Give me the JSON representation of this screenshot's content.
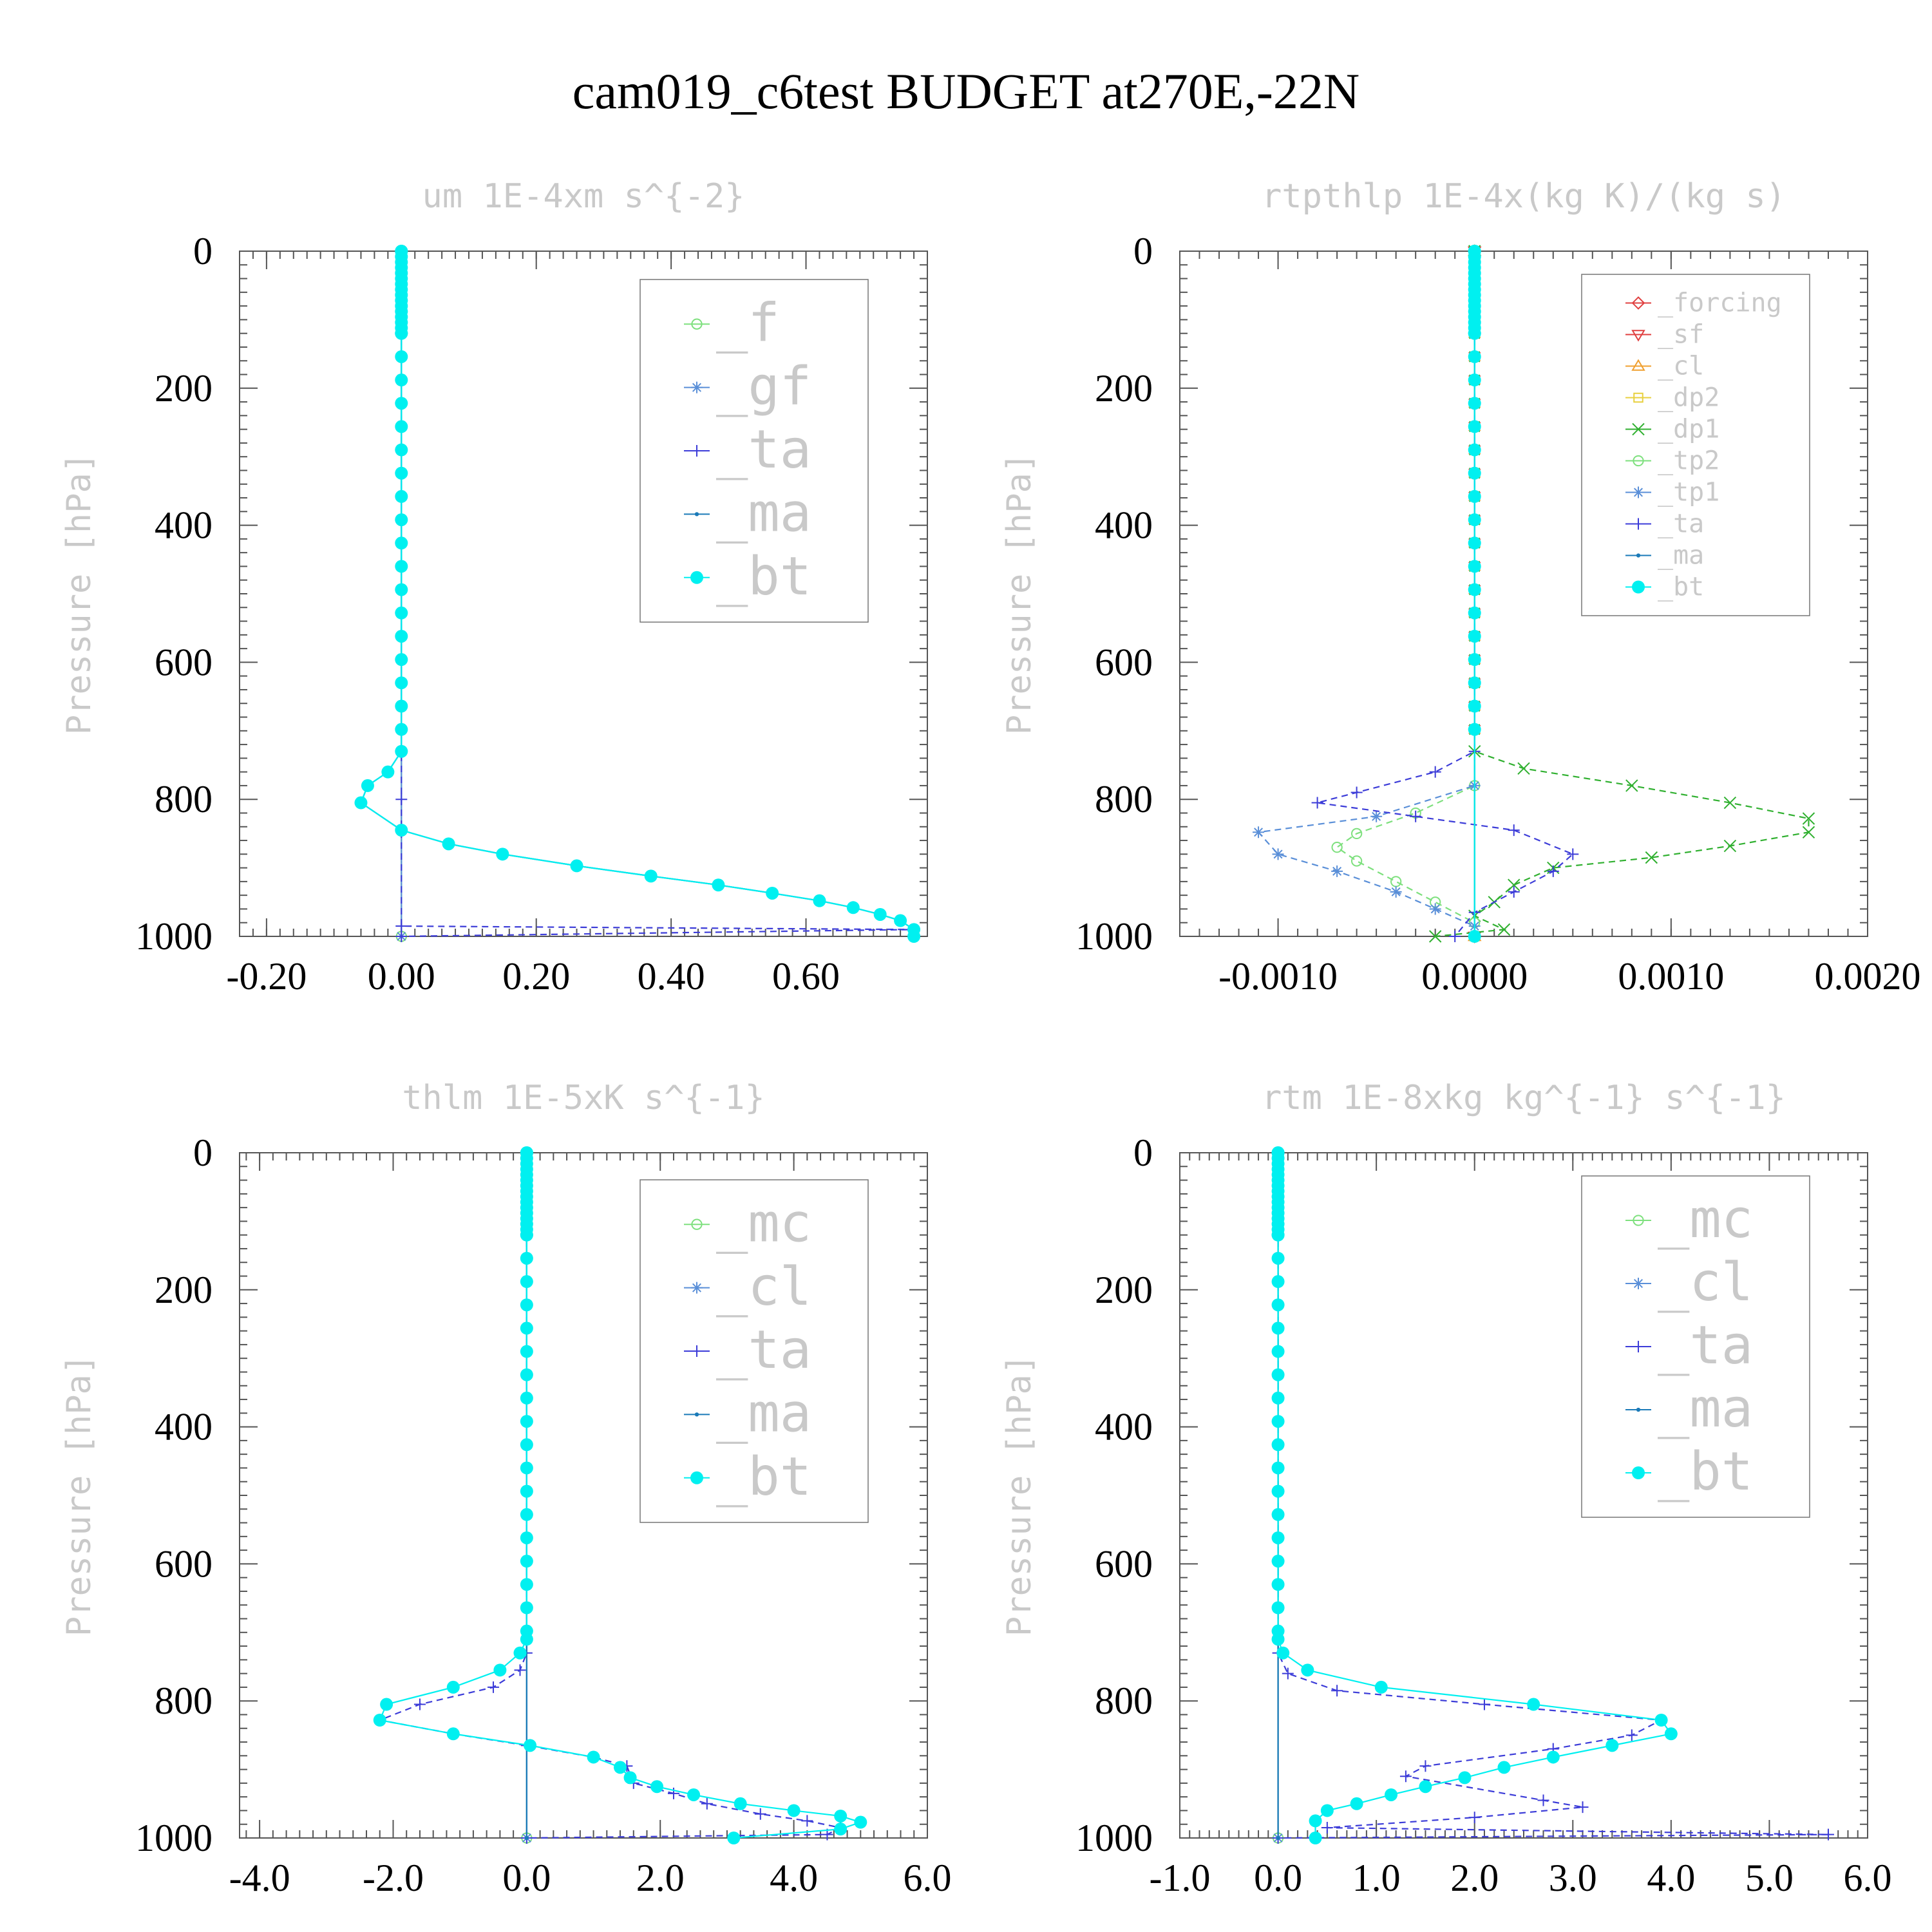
{
  "title": "cam019_c6test  BUDGET at270E,-22N",
  "chart_data": [
    {
      "type": "line",
      "title": "um   1E-4xm s^{-2}",
      "ylabel": "Pressure [hPa]",
      "xlim": [
        -0.24,
        0.78
      ],
      "ylim": [
        1000,
        0
      ],
      "xticks": [
        -0.2,
        0.0,
        0.2,
        0.4,
        0.6
      ],
      "xtick_labels": [
        "-0.20",
        "0.00",
        "0.20",
        "0.40",
        "0.60"
      ],
      "yticks": [
        0,
        200,
        400,
        600,
        800,
        1000
      ],
      "ytick_labels": [
        "0",
        "200",
        "400",
        "600",
        "800",
        "1000"
      ],
      "legend": "top-right",
      "series": [
        {
          "name": "_f",
          "color": "#7ee07e",
          "marker": "circle-open",
          "x": [
            0,
            0
          ],
          "y": [
            0,
            1000
          ]
        },
        {
          "name": "_gf",
          "color": "#5a8fd8",
          "marker": "star",
          "x": [
            0,
            0
          ],
          "y": [
            0,
            1000
          ]
        },
        {
          "name": "_ta",
          "color": "#3c3cd8",
          "marker": "plus",
          "dash": true,
          "x": [
            0.0,
            0.0,
            0.0,
            0.76,
            0.0
          ],
          "y": [
            0,
            800,
            985,
            990,
            1000
          ]
        },
        {
          "name": "_ma",
          "color": "#1a7ab8",
          "marker": "dot",
          "x": [
            0,
            0,
            -0.02,
            -0.05,
            -0.06,
            0.0,
            0.07,
            0.15,
            0.26,
            0.37,
            0.47,
            0.55,
            0.62,
            0.67,
            0.71,
            0.74,
            0.76
          ],
          "y": [
            0,
            730,
            760,
            780,
            805,
            845,
            865,
            880,
            897,
            912,
            925,
            937,
            948,
            958,
            968,
            977,
            990
          ]
        },
        {
          "name": "_bt",
          "color": "#00f0f0",
          "marker": "dot-filled",
          "x": [
            0,
            0,
            -0.02,
            -0.05,
            -0.06,
            0.0,
            0.07,
            0.15,
            0.26,
            0.37,
            0.47,
            0.55,
            0.62,
            0.67,
            0.71,
            0.74,
            0.76,
            0.76
          ],
          "y": [
            0,
            730,
            760,
            780,
            805,
            845,
            865,
            880,
            897,
            912,
            925,
            937,
            948,
            958,
            968,
            977,
            990,
            1000
          ]
        }
      ]
    },
    {
      "type": "line",
      "title": "rtpthlp   1E-4x(kg K)/(kg s)",
      "ylabel": "Pressure [hPa]",
      "xlim": [
        -0.0015,
        0.002
      ],
      "ylim": [
        1000,
        0
      ],
      "xticks": [
        -0.001,
        0.0,
        0.001,
        0.002
      ],
      "xtick_labels": [
        "-0.0010",
        "0.0000",
        "0.0010",
        "0.0020"
      ],
      "yticks": [
        0,
        200,
        400,
        600,
        800,
        1000
      ],
      "ytick_labels": [
        "0",
        "200",
        "400",
        "600",
        "800",
        "1000"
      ],
      "legend": "top-right",
      "series": [
        {
          "name": "_forcing",
          "color": "#e04040",
          "marker": "diamond",
          "x": [
            0,
            0
          ],
          "y": [
            0,
            1000
          ]
        },
        {
          "name": "_sf",
          "color": "#e04040",
          "marker": "triangle-down",
          "x": [
            0,
            0
          ],
          "y": [
            0,
            1000
          ]
        },
        {
          "name": "_cl",
          "color": "#f0a030",
          "marker": "triangle-up",
          "x": [
            0,
            0
          ],
          "y": [
            0,
            1000
          ]
        },
        {
          "name": "_dp2",
          "color": "#e8d040",
          "marker": "square",
          "x": [
            0,
            0
          ],
          "y": [
            0,
            1000
          ]
        },
        {
          "name": "_dp1",
          "color": "#30b030",
          "marker": "x",
          "dash": true,
          "x": [
            0,
            0,
            0.00025,
            0.0008,
            0.0013,
            0.0017,
            0.0017,
            0.0013,
            0.0009,
            0.0004,
            0.0002,
            0.0001,
            0.0,
            0.00015,
            -0.0002
          ],
          "y": [
            0,
            730,
            755,
            780,
            805,
            828,
            848,
            868,
            885,
            900,
            925,
            950,
            970,
            990,
            1000
          ]
        },
        {
          "name": "_tp2",
          "color": "#7ee07e",
          "marker": "circle-open",
          "dash": true,
          "x": [
            0,
            0,
            -0.0003,
            -0.0006,
            -0.0007,
            -0.0006,
            -0.0004,
            -0.0002,
            0.0
          ],
          "y": [
            0,
            780,
            820,
            850,
            870,
            890,
            920,
            950,
            980
          ]
        },
        {
          "name": "_tp1",
          "color": "#5a8fd8",
          "marker": "star",
          "dash": true,
          "x": [
            0,
            0,
            -0.0005,
            -0.0011,
            -0.001,
            -0.0007,
            -0.0004,
            -0.0002,
            0.0
          ],
          "y": [
            0,
            780,
            825,
            848,
            880,
            905,
            935,
            960,
            985
          ]
        },
        {
          "name": "_ta",
          "color": "#3c3cd8",
          "marker": "plus",
          "dash": true,
          "x": [
            0,
            0,
            -0.0002,
            -0.0006,
            -0.0008,
            -0.0003,
            0.0002,
            0.0005,
            0.0004,
            0.0002,
            0.0,
            -0.0001
          ],
          "y": [
            0,
            730,
            760,
            790,
            805,
            825,
            845,
            880,
            905,
            935,
            965,
            1000
          ]
        },
        {
          "name": "_ma",
          "color": "#1a7ab8",
          "marker": "dot",
          "x": [
            0,
            0
          ],
          "y": [
            0,
            1000
          ]
        },
        {
          "name": "_bt",
          "color": "#00f0f0",
          "marker": "dot-filled",
          "x": [
            0,
            0
          ],
          "y": [
            0,
            1000
          ]
        }
      ]
    },
    {
      "type": "line",
      "title": "thlm   1E-5xK s^{-1}",
      "ylabel": "Pressure [hPa]",
      "xlim": [
        -4.3,
        6.0
      ],
      "ylim": [
        1000,
        0
      ],
      "xticks": [
        -4,
        -2,
        0,
        2,
        4,
        6
      ],
      "xtick_labels": [
        "-4.0",
        "-2.0",
        "0.0",
        "2.0",
        "4.0",
        "6.0"
      ],
      "yticks": [
        0,
        200,
        400,
        600,
        800,
        1000
      ],
      "ytick_labels": [
        "0",
        "200",
        "400",
        "600",
        "800",
        "1000"
      ],
      "legend": "top-right",
      "series": [
        {
          "name": "_mc",
          "color": "#7ee07e",
          "marker": "circle-open",
          "x": [
            0,
            0
          ],
          "y": [
            0,
            1000
          ]
        },
        {
          "name": "_cl",
          "color": "#5a8fd8",
          "marker": "star",
          "x": [
            0,
            0
          ],
          "y": [
            0,
            1000
          ]
        },
        {
          "name": "_ta",
          "color": "#3c3cd8",
          "marker": "plus",
          "dash": true,
          "x": [
            0,
            0,
            -0.1,
            -0.5,
            -1.6,
            -2.2,
            -1.1,
            0.0,
            1.0,
            1.5,
            1.6,
            2.2,
            2.7,
            3.5,
            4.2,
            4.7,
            4.5,
            0.0
          ],
          "y": [
            0,
            730,
            755,
            780,
            805,
            828,
            848,
            865,
            882,
            895,
            920,
            935,
            950,
            965,
            975,
            985,
            995,
            1000
          ]
        },
        {
          "name": "_ma",
          "color": "#1a7ab8",
          "marker": "dot",
          "x": [
            0,
            0
          ],
          "y": [
            0,
            1000
          ]
        },
        {
          "name": "_bt",
          "color": "#00f0f0",
          "marker": "dot-filled",
          "x": [
            0,
            0,
            -0.1,
            -0.4,
            -1.1,
            -2.1,
            -2.2,
            -1.1,
            0.05,
            1.0,
            1.4,
            1.55,
            1.95,
            2.5,
            3.2,
            4.0,
            4.7,
            5.0,
            4.7,
            3.1
          ],
          "y": [
            0,
            710,
            730,
            755,
            780,
            805,
            828,
            848,
            865,
            882,
            897,
            912,
            925,
            937,
            950,
            960,
            968,
            977,
            987,
            1000
          ]
        }
      ]
    },
    {
      "type": "line",
      "title": "rtm   1E-8xkg kg^{-1} s^{-1}",
      "ylabel": "Pressure [hPa]",
      "xlim": [
        -1.0,
        6.0
      ],
      "ylim": [
        1000,
        0
      ],
      "xticks": [
        -1,
        0,
        1,
        2,
        3,
        4,
        5,
        6
      ],
      "xtick_labels": [
        "-1.0",
        "0.0",
        "1.0",
        "2.0",
        "3.0",
        "4.0",
        "5.0",
        "6.0"
      ],
      "yticks": [
        0,
        200,
        400,
        600,
        800,
        1000
      ],
      "ytick_labels": [
        "0",
        "200",
        "400",
        "600",
        "800",
        "1000"
      ],
      "legend": "top-right",
      "series": [
        {
          "name": "_mc",
          "color": "#7ee07e",
          "marker": "circle-open",
          "x": [
            0,
            0
          ],
          "y": [
            0,
            1000
          ]
        },
        {
          "name": "_cl",
          "color": "#5a8fd8",
          "marker": "star",
          "x": [
            0,
            0
          ],
          "y": [
            0,
            1000
          ]
        },
        {
          "name": "_ta",
          "color": "#3c3cd8",
          "marker": "plus",
          "dash": true,
          "x": [
            0,
            0,
            0.1,
            0.6,
            2.1,
            3.9,
            3.6,
            2.8,
            1.5,
            1.3,
            2.7,
            3.1,
            2.0,
            0.5,
            5.6,
            0.0
          ],
          "y": [
            0,
            730,
            760,
            785,
            805,
            828,
            850,
            870,
            895,
            910,
            945,
            955,
            970,
            985,
            995,
            1000
          ]
        },
        {
          "name": "_ma",
          "color": "#1a7ab8",
          "marker": "dot",
          "x": [
            0,
            0
          ],
          "y": [
            0,
            1000
          ]
        },
        {
          "name": "_bt",
          "color": "#00f0f0",
          "marker": "dot-filled",
          "x": [
            0,
            0,
            0.05,
            0.3,
            1.05,
            2.6,
            3.9,
            4.0,
            3.4,
            2.8,
            2.3,
            1.9,
            1.5,
            1.15,
            0.8,
            0.5,
            0.38,
            0.38
          ],
          "y": [
            0,
            710,
            730,
            755,
            780,
            805,
            828,
            848,
            865,
            882,
            897,
            912,
            925,
            937,
            950,
            960,
            975,
            1000
          ]
        }
      ]
    }
  ]
}
